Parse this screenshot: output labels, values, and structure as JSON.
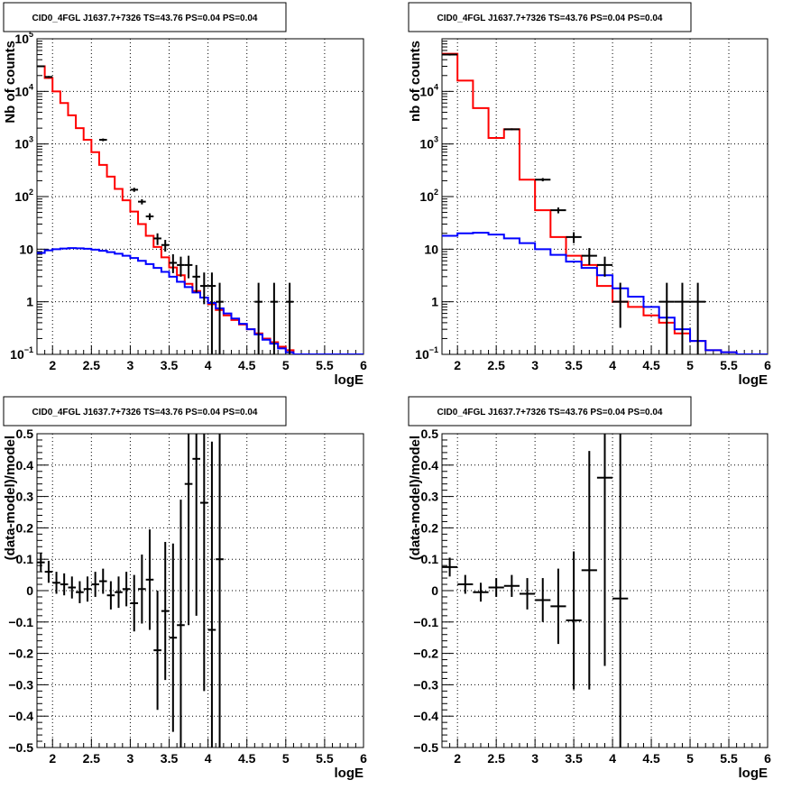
{
  "colors": {
    "data": "#000000",
    "total_model": "#ff0000",
    "background_model": "#0000ff",
    "grid": "#000000"
  },
  "chart_data": [
    {
      "id": "counts_left",
      "type": "line",
      "title": "CID0_4FGL J1637.7+7326 TS=43.76 PS=0.04 PS=0.04",
      "xlabel": "logE",
      "ylabel": "Nb of counts",
      "xlim": [
        1.8,
        6.0
      ],
      "ylim": [
        0.1,
        100000
      ],
      "yscale": "log",
      "grid": true,
      "xticks": [
        "2",
        "2.5",
        "3",
        "3.5",
        "4",
        "4.5",
        "5",
        "5.5",
        "6"
      ],
      "yticks": [
        {
          "base": "10",
          "exp": "−1",
          "v": 0.1
        },
        {
          "base": "1",
          "exp": "",
          "v": 1
        },
        {
          "base": "10",
          "exp": "",
          "v": 10
        },
        {
          "base": "10",
          "exp": "2",
          "v": 100
        },
        {
          "base": "10",
          "exp": "3",
          "v": 1000
        },
        {
          "base": "10",
          "exp": "4",
          "v": 10000
        },
        {
          "base": "10",
          "exp": "5",
          "v": 100000
        }
      ],
      "bin_edges": [
        1.8,
        1.9,
        2.0,
        2.1,
        2.2,
        2.3,
        2.4,
        2.5,
        2.6,
        2.7,
        2.8,
        2.9,
        3.0,
        3.1,
        3.2,
        3.3,
        3.4,
        3.5,
        3.6,
        3.7,
        3.8,
        3.9,
        4.0,
        4.1,
        4.2,
        4.3,
        4.4,
        4.5,
        4.6,
        4.7,
        4.8,
        4.9,
        5.0,
        5.1,
        5.2,
        5.3,
        5.4,
        5.5,
        5.6,
        5.7,
        5.8,
        5.9,
        6.0
      ],
      "series": [
        {
          "role": "total_model",
          "values": [
            30000,
            18000,
            10000,
            6000,
            3500,
            2000,
            1200,
            700,
            400,
            240,
            140,
            85,
            52,
            30,
            18,
            11,
            7,
            4.5,
            3.2,
            2.2,
            1.6,
            1.2,
            0.9,
            0.7,
            0.55,
            0.45,
            0.37,
            0.3,
            0.25,
            0.2,
            0.17,
            0.14,
            0.12,
            0.1,
            0.1,
            0.1,
            0.1,
            0.1,
            0.1,
            0.1,
            0.1,
            0.1
          ]
        },
        {
          "role": "background_model",
          "values": [
            8.5,
            9.5,
            10,
            10.3,
            10.5,
            10.4,
            10.2,
            9.8,
            9.3,
            8.8,
            8.2,
            7.5,
            6.8,
            6.0,
            5.2,
            4.4,
            3.7,
            3.0,
            2.4,
            1.9,
            1.5,
            1.2,
            0.95,
            0.75,
            0.6,
            0.48,
            0.38,
            0.3,
            0.24,
            0.19,
            0.16,
            0.13,
            0.11,
            0.1,
            0.1,
            0.1,
            0.1,
            0.1,
            0.1,
            0.1,
            0.1,
            0.1
          ]
        }
      ],
      "points": [
        {
          "x": 1.85,
          "y": 30000,
          "lo": 29000,
          "hi": 31000
        },
        {
          "x": 1.95,
          "y": 18800,
          "lo": 18000,
          "hi": 19600
        },
        {
          "x": 2.65,
          "y": 1200,
          "lo": 1130,
          "hi": 1270
        },
        {
          "x": 3.05,
          "y": 135,
          "lo": 123,
          "hi": 147
        },
        {
          "x": 3.15,
          "y": 80,
          "lo": 71,
          "hi": 89
        },
        {
          "x": 3.25,
          "y": 42,
          "lo": 36,
          "hi": 48
        },
        {
          "x": 3.35,
          "y": 16,
          "lo": 12,
          "hi": 20
        },
        {
          "x": 3.45,
          "y": 12,
          "lo": 9,
          "hi": 15
        },
        {
          "x": 3.55,
          "y": 5.5,
          "lo": 3.5,
          "hi": 8
        },
        {
          "x": 3.65,
          "y": 5,
          "lo": 3,
          "hi": 7.2
        },
        {
          "x": 3.75,
          "y": 5,
          "lo": 2.8,
          "hi": 7.5
        },
        {
          "x": 3.85,
          "y": 3,
          "lo": 1.5,
          "hi": 5
        },
        {
          "x": 3.95,
          "y": 2,
          "lo": 0.9,
          "hi": 3.6
        },
        {
          "x": 4.05,
          "y": 2,
          "lo": 0.1,
          "hi": 3.6
        },
        {
          "x": 4.15,
          "y": 1,
          "lo": 0.1,
          "hi": 2.3
        },
        {
          "x": 4.65,
          "y": 1,
          "lo": 0.1,
          "hi": 2.3
        },
        {
          "x": 4.85,
          "y": 1,
          "lo": 0.1,
          "hi": 2.3
        },
        {
          "x": 5.05,
          "y": 1,
          "lo": 0.1,
          "hi": 2.3
        }
      ]
    },
    {
      "id": "counts_right",
      "type": "line",
      "title": "CID0_4FGL J1637.7+7326 TS=43.76 PS=0.04 PS=0.04",
      "xlabel": "logE",
      "ylabel": "nb of counts",
      "xlim": [
        1.8,
        6.0
      ],
      "ylim": [
        0.1,
        100000
      ],
      "yscale": "log",
      "grid": true,
      "xticks": [
        "2",
        "2.5",
        "3",
        "3.5",
        "4",
        "4.5",
        "5",
        "5.5",
        "6"
      ],
      "yticks": [
        {
          "base": "10",
          "exp": "−1",
          "v": 0.1
        },
        {
          "base": "1",
          "exp": "",
          "v": 1
        },
        {
          "base": "10",
          "exp": "",
          "v": 10
        },
        {
          "base": "10",
          "exp": "2",
          "v": 100
        },
        {
          "base": "10",
          "exp": "3",
          "v": 1000
        },
        {
          "base": "10",
          "exp": "4",
          "v": 10000
        }
      ],
      "bin_edges": [
        1.8,
        2.0,
        2.2,
        2.4,
        2.6,
        2.8,
        3.0,
        3.2,
        3.4,
        3.6,
        3.8,
        4.0,
        4.2,
        4.4,
        4.6,
        4.8,
        5.0,
        5.2,
        5.4,
        5.6,
        5.8,
        6.0
      ],
      "series": [
        {
          "role": "total_model",
          "values": [
            52000,
            16000,
            4800,
            1300,
            1900,
            210,
            55,
            17,
            7.5,
            5,
            2,
            1,
            0.8,
            0.55,
            0.4,
            0.25,
            0.18,
            0.12,
            0.11,
            0.1,
            0.1
          ]
        },
        {
          "role": "background_model",
          "values": [
            18,
            20,
            20.5,
            19,
            16,
            13,
            10,
            7.8,
            5.8,
            4.4,
            3.2,
            1.8,
            1.25,
            0.8,
            0.5,
            0.3,
            0.18,
            0.12,
            0.11,
            0.1,
            0.1
          ]
        }
      ],
      "points": [
        {
          "x": 1.9,
          "y": 50000,
          "lo": 48000,
          "hi": 52000
        },
        {
          "x": 2.7,
          "y": 1900,
          "lo": 1820,
          "hi": 1980
        },
        {
          "x": 3.1,
          "y": 210,
          "lo": 195,
          "hi": 225
        },
        {
          "x": 3.3,
          "y": 55,
          "lo": 48,
          "hi": 62
        },
        {
          "x": 3.5,
          "y": 17,
          "lo": 13,
          "hi": 21
        },
        {
          "x": 3.7,
          "y": 7.5,
          "lo": 5,
          "hi": 10.5
        },
        {
          "x": 3.9,
          "y": 5,
          "lo": 3,
          "hi": 7.2
        },
        {
          "x": 4.1,
          "y": 1,
          "lo": 0.32,
          "hi": 2.3
        },
        {
          "x": 4.7,
          "y": 1,
          "lo": 0.1,
          "hi": 2.3
        },
        {
          "x": 4.9,
          "y": 1,
          "lo": 0.1,
          "hi": 2.3
        },
        {
          "x": 5.1,
          "y": 1,
          "lo": 0.1,
          "hi": 2.3
        }
      ]
    },
    {
      "id": "residuals_left",
      "type": "scatter",
      "title": "CID0_4FGL J1637.7+7326 TS=43.76 PS=0.04 PS=0.04",
      "xlabel": "logE",
      "ylabel": "(data-model)/model",
      "xlim": [
        1.8,
        6.0
      ],
      "ylim": [
        -0.5,
        0.5
      ],
      "yscale": "linear",
      "grid": true,
      "xticks": [
        "2",
        "2.5",
        "3",
        "3.5",
        "4",
        "4.5",
        "5",
        "5.5",
        "6"
      ],
      "yticks": [
        "−0.5",
        "−0.4",
        "−0.3",
        "−0.2",
        "−0.1",
        "0",
        "0.1",
        "0.2",
        "0.3",
        "0.4",
        "0.5"
      ],
      "points": [
        {
          "x": 1.85,
          "y": 0.09,
          "err": 0.03
        },
        {
          "x": 1.95,
          "y": 0.06,
          "err": 0.035
        },
        {
          "x": 2.05,
          "y": 0.025,
          "err": 0.035
        },
        {
          "x": 2.15,
          "y": 0.02,
          "err": 0.035
        },
        {
          "x": 2.25,
          "y": 0.01,
          "err": 0.035
        },
        {
          "x": 2.35,
          "y": -0.005,
          "err": 0.035
        },
        {
          "x": 2.45,
          "y": 0.005,
          "err": 0.04
        },
        {
          "x": 2.55,
          "y": 0.02,
          "err": 0.04
        },
        {
          "x": 2.65,
          "y": 0.03,
          "err": 0.04
        },
        {
          "x": 2.75,
          "y": -0.015,
          "err": 0.045
        },
        {
          "x": 2.85,
          "y": -0.005,
          "err": 0.05
        },
        {
          "x": 2.95,
          "y": 0.005,
          "err": 0.055
        },
        {
          "x": 3.05,
          "y": -0.04,
          "err": 0.09
        },
        {
          "x": 3.15,
          "y": 0.005,
          "err": 0.11
        },
        {
          "x": 3.25,
          "y": 0.035,
          "err": 0.16
        },
        {
          "x": 3.35,
          "y": -0.19,
          "err": 0.19
        },
        {
          "x": 3.45,
          "y": -0.065,
          "err": 0.22
        },
        {
          "x": 3.55,
          "y": -0.15,
          "err": 0.3
        },
        {
          "x": 3.65,
          "y": -0.11,
          "err": 0.4
        },
        {
          "x": 3.75,
          "y": 0.34,
          "err": 0.45
        },
        {
          "x": 3.85,
          "y": 0.42,
          "err": 0.5
        },
        {
          "x": 3.95,
          "y": 0.28,
          "err": 0.6
        },
        {
          "x": 4.05,
          "y": -0.125,
          "err": 0.6
        },
        {
          "x": 4.15,
          "y": 0.1,
          "err": 0.9
        }
      ]
    },
    {
      "id": "residuals_right",
      "type": "scatter",
      "title": "CID0_4FGL J1637.7+7326 TS=43.76 PS=0.04 PS=0.04",
      "xlabel": "logE",
      "ylabel": "(data-model)/model",
      "xlim": [
        1.8,
        6.0
      ],
      "ylim": [
        -0.5,
        0.5
      ],
      "yscale": "linear",
      "grid": true,
      "xticks": [
        "2",
        "2.5",
        "3",
        "3.5",
        "4",
        "4.5",
        "5",
        "5.5",
        "6"
      ],
      "yticks": [
        "−0.5",
        "−0.4",
        "−0.3",
        "−0.2",
        "−0.1",
        "0",
        "0.1",
        "0.2",
        "0.3",
        "0.4",
        "0.5"
      ],
      "points": [
        {
          "x": 1.9,
          "y": 0.075,
          "err": 0.03
        },
        {
          "x": 2.1,
          "y": 0.02,
          "err": 0.03
        },
        {
          "x": 2.3,
          "y": -0.005,
          "err": 0.03
        },
        {
          "x": 2.5,
          "y": 0.01,
          "err": 0.03
        },
        {
          "x": 2.7,
          "y": 0.015,
          "err": 0.035
        },
        {
          "x": 2.9,
          "y": -0.01,
          "err": 0.05
        },
        {
          "x": 3.1,
          "y": -0.03,
          "err": 0.07
        },
        {
          "x": 3.3,
          "y": -0.05,
          "err": 0.12
        },
        {
          "x": 3.5,
          "y": -0.095,
          "err": 0.22
        },
        {
          "x": 3.7,
          "y": 0.065,
          "err": 0.38
        },
        {
          "x": 3.9,
          "y": 0.36,
          "err": 0.6
        },
        {
          "x": 4.1,
          "y": -0.025,
          "err": 0.9
        }
      ]
    }
  ]
}
